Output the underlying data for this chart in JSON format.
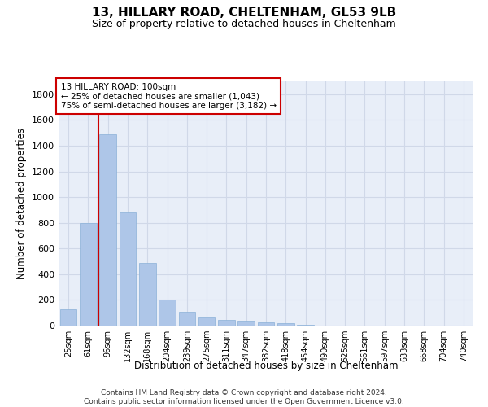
{
  "title1": "13, HILLARY ROAD, CHELTENHAM, GL53 9LB",
  "title2": "Size of property relative to detached houses in Cheltenham",
  "xlabel": "Distribution of detached houses by size in Cheltenham",
  "ylabel": "Number of detached properties",
  "footnote": "Contains HM Land Registry data © Crown copyright and database right 2024.\nContains public sector information licensed under the Open Government Licence v3.0.",
  "bar_labels": [
    "25sqm",
    "61sqm",
    "96sqm",
    "132sqm",
    "168sqm",
    "204sqm",
    "239sqm",
    "275sqm",
    "311sqm",
    "347sqm",
    "382sqm",
    "418sqm",
    "454sqm",
    "490sqm",
    "525sqm",
    "561sqm",
    "597sqm",
    "633sqm",
    "668sqm",
    "704sqm",
    "740sqm"
  ],
  "bar_values": [
    125,
    800,
    1490,
    880,
    490,
    205,
    105,
    65,
    42,
    35,
    25,
    18,
    5,
    0,
    0,
    0,
    0,
    0,
    0,
    0,
    0
  ],
  "bar_color": "#aec6e8",
  "bar_edge_color": "#8ab0d8",
  "grid_color": "#d0d8e8",
  "annotation_text": "13 HILLARY ROAD: 100sqm\n← 25% of detached houses are smaller (1,043)\n75% of semi-detached houses are larger (3,182) →",
  "vline_x": 1.5,
  "vline_color": "#cc0000",
  "box_color": "#cc0000",
  "ylim": [
    0,
    1900
  ],
  "yticks": [
    0,
    200,
    400,
    600,
    800,
    1000,
    1200,
    1400,
    1600,
    1800
  ],
  "bg_color": "#e8eef8"
}
